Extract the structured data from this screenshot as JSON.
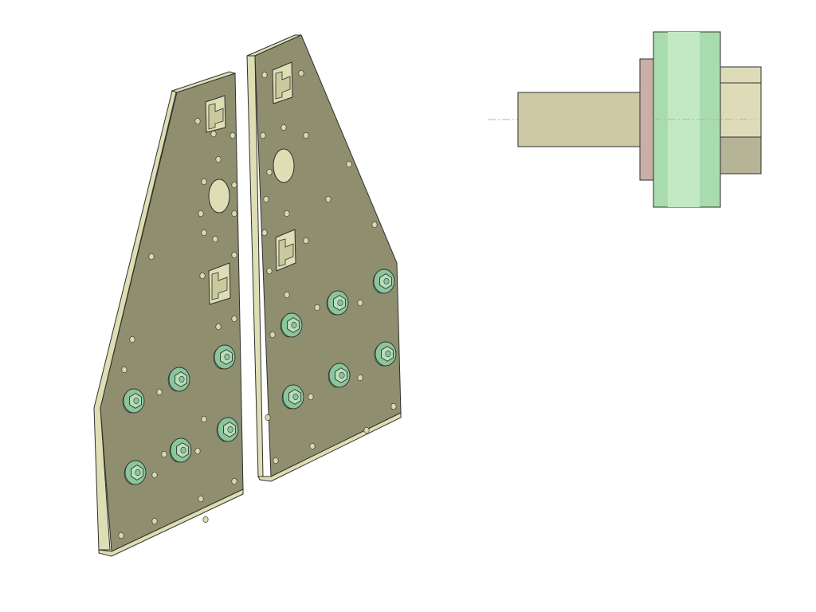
{
  "viewport": {
    "background": "#ffffff",
    "view_mode": "shaded-with-edges"
  },
  "colors": {
    "plate_face": "#8f8f70",
    "plate_edge": "#dedeb4",
    "plate_edge_dark": "#c9c99e",
    "outline": "#2f2f2f",
    "hole": "#d8d8b0",
    "fitting_face": "#8cc59c",
    "fitting_hub": "#b8dfb8",
    "fitting_dark": "#5f9a70",
    "shaft": "#ccc9a4",
    "shaft_dark": "#a9a685",
    "washer": "#c8b0a8",
    "hex_light": "#dedcb8",
    "hex_dark": "#b6b497",
    "wheel": "#a8dcae",
    "wheel_light": "#c2e9c4",
    "centerline": "#b7b78a"
  },
  "parts": {
    "left_plate": {
      "part": "side-plate",
      "bolt_count": 6
    },
    "right_plate": {
      "part": "side-plate",
      "bolt_count": 6
    },
    "shaft_assembly": {
      "part": "shaft-with-wheel",
      "components": [
        "shaft",
        "washer",
        "wheel",
        "hex-nut",
        "centerline"
      ]
    }
  },
  "icons": {
    "bolt": "hex-bolt-icon",
    "slot": "rectangular-slot",
    "hole": "round-hole"
  }
}
